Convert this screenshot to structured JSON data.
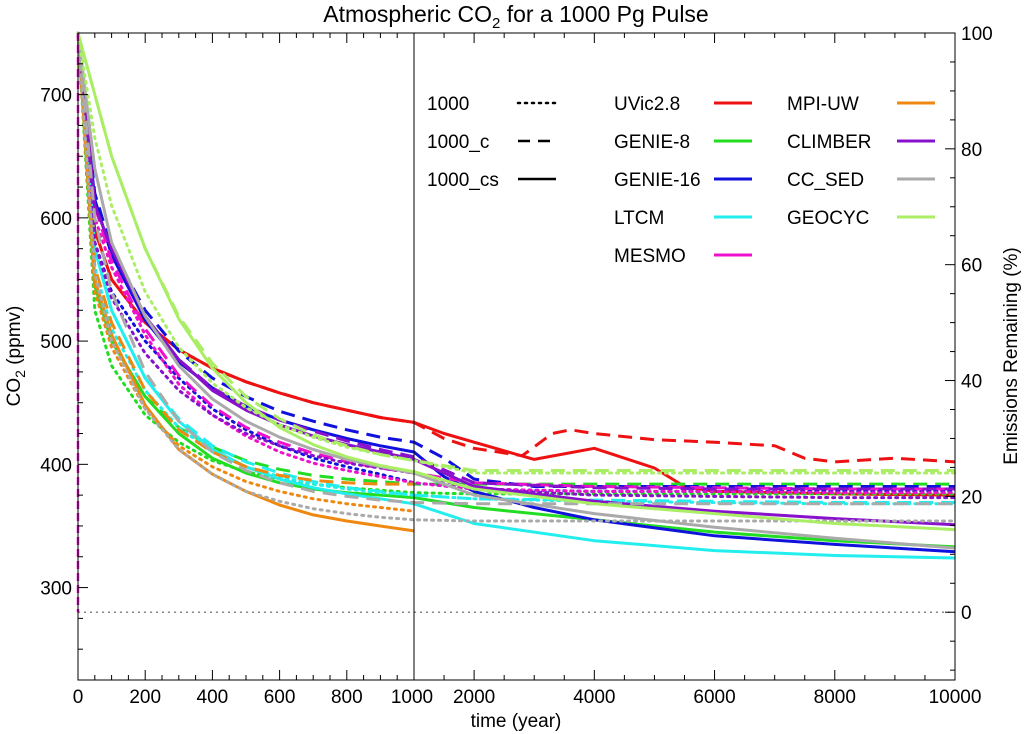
{
  "chart_data": {
    "type": "line",
    "title_main": "Atmospheric CO",
    "title_sub": "2",
    "title_tail": " for a 1000 Pg Pulse",
    "xlabel": "time (year)",
    "ylabel_main": "CO",
    "ylabel_sub": "2",
    "ylabel_tail": " (ppmv)",
    "y2label": "Emissions Remaining (%)",
    "ylim": [
      225,
      750
    ],
    "x_segments": [
      {
        "range": [
          0,
          1000
        ],
        "ticks": [
          0,
          200,
          400,
          600,
          800,
          1000
        ],
        "labels": [
          "0",
          "200",
          "400",
          "600",
          "800",
          "1000"
        ]
      },
      {
        "range": [
          1000,
          10000
        ],
        "ticks": [
          2000,
          4000,
          6000,
          8000,
          10000
        ],
        "labels": [
          "2000",
          "4000",
          "6000",
          "8000",
          "10000"
        ]
      }
    ],
    "yticks": [
      300,
      400,
      500,
      600,
      700
    ],
    "yticklabels": [
      "300",
      "400",
      "500",
      "600",
      "700"
    ],
    "y2ticks": [
      0,
      20,
      40,
      60,
      80,
      100
    ],
    "y2ticklabels": [
      "0",
      "20",
      "40",
      "60",
      "80",
      "100"
    ],
    "baseline_ppmv": 280,
    "divider_year": 1000,
    "line_styles": [
      {
        "name": "1000",
        "dash": "dotted"
      },
      {
        "name": "1000_c",
        "dash": "dashed"
      },
      {
        "name": "1000_cs",
        "dash": "solid"
      }
    ],
    "models": [
      {
        "name": "UVic2.8",
        "color": "#ee1111"
      },
      {
        "name": "GENIE-8",
        "color": "#22dd22"
      },
      {
        "name": "GENIE-16",
        "color": "#1111dd"
      },
      {
        "name": "LTCM",
        "color": "#22eeee"
      },
      {
        "name": "MESMO",
        "color": "#ee11cc"
      },
      {
        "name": "MPI-UW",
        "color": "#ee8811"
      },
      {
        "name": "CLIMBER",
        "color": "#8811cc"
      },
      {
        "name": "CC_SED",
        "color": "#aaaaaa"
      },
      {
        "name": "GEOCYC",
        "color": "#aaee66"
      }
    ],
    "series": [
      {
        "model": "UVic2.8",
        "style": "1000_cs",
        "x": [
          0,
          50,
          100,
          200,
          300,
          400,
          500,
          600,
          700,
          800,
          900,
          1000,
          1500,
          2000,
          3000,
          4000,
          5000,
          5500,
          6000,
          8000,
          10000
        ],
        "y": [
          750,
          590,
          550,
          515,
          493,
          478,
          467,
          458,
          450,
          444,
          438,
          434,
          425,
          418,
          404,
          413,
          397,
          382,
          378,
          376,
          375
        ]
      },
      {
        "model": "UVic2.8",
        "style": "1000_c",
        "x": [
          0,
          50,
          100,
          200,
          300,
          400,
          500,
          600,
          700,
          800,
          900,
          1000,
          1500,
          2000,
          2800,
          3300,
          3600,
          4000,
          5000,
          6000,
          7000,
          7500,
          8000,
          9000,
          10000
        ],
        "y": [
          750,
          590,
          550,
          515,
          493,
          478,
          467,
          458,
          450,
          444,
          438,
          434,
          421,
          413,
          407,
          425,
          428,
          425,
          420,
          418,
          415,
          405,
          402,
          405,
          402
        ]
      },
      {
        "model": "GENIE-8",
        "style": "1000",
        "x": [
          0,
          50,
          100,
          200,
          300,
          400,
          500,
          600,
          700,
          800,
          900,
          1000,
          2000,
          4000,
          6000,
          8000,
          10000
        ],
        "y": [
          750,
          525,
          480,
          440,
          418,
          403,
          394,
          388,
          384,
          381,
          379,
          377,
          376,
          376,
          376,
          376,
          376
        ]
      },
      {
        "model": "GENIE-8",
        "style": "1000_c",
        "x": [
          0,
          50,
          100,
          200,
          300,
          400,
          500,
          600,
          700,
          800,
          900,
          1000,
          2000,
          4000,
          6000,
          8000,
          10000
        ],
        "y": [
          750,
          545,
          500,
          455,
          430,
          414,
          403,
          396,
          391,
          388,
          386,
          384,
          384,
          384,
          384,
          384,
          384
        ]
      },
      {
        "model": "GENIE-8",
        "style": "1000_cs",
        "x": [
          0,
          50,
          100,
          200,
          300,
          400,
          500,
          600,
          700,
          800,
          900,
          1000,
          2000,
          4000,
          6000,
          8000,
          10000
        ],
        "y": [
          750,
          545,
          500,
          455,
          425,
          405,
          393,
          385,
          380,
          377,
          375,
          373,
          365,
          355,
          345,
          338,
          333
        ]
      },
      {
        "model": "GENIE-16",
        "style": "1000",
        "x": [
          0,
          50,
          100,
          200,
          300,
          400,
          500,
          600,
          700,
          800,
          900,
          1000,
          2000,
          4000,
          6000,
          8000,
          10000
        ],
        "y": [
          750,
          580,
          540,
          500,
          470,
          445,
          428,
          415,
          405,
          398,
          392,
          385,
          380,
          378,
          378,
          378,
          378
        ]
      },
      {
        "model": "GENIE-16",
        "style": "1000_c",
        "x": [
          0,
          50,
          100,
          200,
          300,
          400,
          500,
          600,
          700,
          800,
          900,
          1000,
          1500,
          2000,
          3000,
          4000,
          6000,
          8000,
          10000
        ],
        "y": [
          750,
          620,
          575,
          525,
          492,
          470,
          455,
          443,
          435,
          428,
          422,
          418,
          405,
          388,
          382,
          382,
          382,
          382,
          382
        ]
      },
      {
        "model": "GENIE-16",
        "style": "1000_cs",
        "x": [
          0,
          50,
          100,
          200,
          300,
          400,
          500,
          600,
          700,
          800,
          900,
          1000,
          1500,
          2000,
          3000,
          4000,
          6000,
          8000,
          10000
        ],
        "y": [
          750,
          615,
          570,
          517,
          483,
          462,
          447,
          436,
          428,
          421,
          415,
          410,
          390,
          378,
          365,
          355,
          342,
          335,
          329
        ]
      },
      {
        "model": "LTCM",
        "style": "1000",
        "x": [
          0,
          50,
          100,
          200,
          300,
          400,
          500,
          600,
          700,
          800,
          900,
          1000,
          2000,
          4000,
          6000,
          8000,
          10000
        ],
        "y": [
          750,
          560,
          510,
          460,
          430,
          410,
          398,
          390,
          384,
          380,
          377,
          375,
          372,
          370,
          369,
          368,
          368
        ]
      },
      {
        "model": "LTCM",
        "style": "1000_c",
        "x": [
          0,
          50,
          100,
          200,
          300,
          400,
          500,
          600,
          700,
          800,
          900,
          1000,
          2000,
          4000,
          6000,
          8000,
          10000
        ],
        "y": [
          750,
          575,
          525,
          470,
          437,
          415,
          402,
          393,
          386,
          381,
          378,
          375,
          372,
          371,
          370,
          369,
          369
        ]
      },
      {
        "model": "LTCM",
        "style": "1000_cs",
        "x": [
          0,
          50,
          100,
          200,
          300,
          400,
          500,
          600,
          700,
          800,
          900,
          1000,
          2000,
          4000,
          6000,
          8000,
          10000
        ],
        "y": [
          750,
          575,
          525,
          470,
          435,
          412,
          398,
          388,
          381,
          376,
          372,
          368,
          352,
          338,
          330,
          326,
          324
        ]
      },
      {
        "model": "MESMO",
        "style": "1000",
        "x": [
          0,
          50,
          100,
          200,
          300,
          400,
          500,
          600,
          700,
          800,
          900,
          1000,
          2000,
          4000,
          6000,
          8000,
          10000
        ],
        "y": [
          750,
          600,
          560,
          505,
          465,
          440,
          423,
          410,
          401,
          395,
          390,
          385,
          380,
          378,
          378,
          377,
          377
        ]
      },
      {
        "model": "MESMO",
        "style": "1000_c",
        "x": [
          0,
          50,
          100,
          200,
          300,
          400,
          500,
          600,
          700,
          800,
          900,
          1000,
          2000,
          4000,
          6000,
          8000,
          10000
        ],
        "y": [
          750,
          610,
          565,
          510,
          472,
          447,
          430,
          418,
          409,
          402,
          397,
          393,
          385,
          382,
          381,
          380,
          380
        ]
      },
      {
        "model": "MPI-UW",
        "style": "1000",
        "x": [
          0,
          50,
          100,
          200,
          300,
          400,
          500,
          600,
          700,
          800,
          900,
          1000
        ],
        "y": [
          750,
          540,
          495,
          445,
          415,
          398,
          386,
          378,
          372,
          368,
          365,
          362
        ]
      },
      {
        "model": "MPI-UW",
        "style": "1000_c",
        "x": [
          0,
          50,
          100,
          200,
          300,
          400,
          500,
          600,
          700,
          800,
          900,
          1000
        ],
        "y": [
          750,
          560,
          515,
          460,
          428,
          410,
          398,
          391,
          387,
          385,
          384,
          384
        ]
      },
      {
        "model": "MPI-UW",
        "style": "1000_cs",
        "x": [
          0,
          50,
          100,
          200,
          300,
          400,
          500,
          600,
          700,
          800,
          900,
          1000
        ],
        "y": [
          750,
          550,
          505,
          448,
          412,
          392,
          378,
          367,
          359,
          354,
          350,
          346
        ]
      },
      {
        "model": "CLIMBER",
        "style": "1000",
        "x": [
          0,
          50,
          100,
          200,
          300,
          400,
          500,
          600,
          700,
          800,
          900,
          1000,
          2000,
          4000,
          6000,
          8000,
          10000
        ],
        "y": [
          750,
          580,
          535,
          490,
          460,
          440,
          425,
          415,
          407,
          401,
          397,
          393,
          380,
          375,
          374,
          373,
          373
        ]
      },
      {
        "model": "CLIMBER",
        "style": "1000_c",
        "x": [
          0,
          50,
          100,
          200,
          300,
          400,
          500,
          600,
          700,
          800,
          900,
          1000,
          2000,
          4000,
          6000,
          8000,
          10000
        ],
        "y": [
          750,
          610,
          575,
          520,
          485,
          462,
          447,
          436,
          427,
          419,
          412,
          406,
          385,
          381,
          380,
          380,
          380
        ]
      },
      {
        "model": "CLIMBER",
        "style": "1000_cs",
        "x": [
          0,
          50,
          100,
          200,
          300,
          400,
          500,
          600,
          700,
          800,
          900,
          1000,
          2000,
          4000,
          6000,
          8000,
          10000
        ],
        "y": [
          750,
          610,
          575,
          520,
          485,
          460,
          444,
          432,
          423,
          416,
          410,
          404,
          382,
          370,
          362,
          356,
          351
        ]
      },
      {
        "model": "CC_SED",
        "style": "1000",
        "x": [
          0,
          50,
          100,
          200,
          300,
          400,
          500,
          600,
          700,
          800,
          900,
          1000,
          2000,
          4000,
          6000,
          8000,
          10000
        ],
        "y": [
          750,
          555,
          500,
          445,
          412,
          392,
          378,
          370,
          364,
          360,
          357,
          355,
          354,
          354,
          354,
          354,
          354
        ]
      },
      {
        "model": "CC_SED",
        "style": "1000_c",
        "x": [
          0,
          50,
          100,
          200,
          300,
          400,
          500,
          600,
          700,
          800,
          900,
          1000,
          2000,
          4000,
          6000,
          8000,
          10000
        ],
        "y": [
          750,
          600,
          540,
          475,
          435,
          410,
          395,
          385,
          378,
          374,
          371,
          369,
          368,
          368,
          368,
          368,
          368
        ]
      },
      {
        "model": "CC_SED",
        "style": "1000_cs",
        "x": [
          0,
          50,
          100,
          200,
          300,
          400,
          500,
          600,
          700,
          800,
          900,
          1000,
          2000,
          4000,
          6000,
          8000,
          10000
        ],
        "y": [
          750,
          640,
          580,
          520,
          480,
          453,
          435,
          422,
          412,
          404,
          398,
          393,
          375,
          360,
          349,
          340,
          332
        ]
      },
      {
        "model": "GEOCYC",
        "style": "1000",
        "x": [
          0,
          50,
          100,
          200,
          300,
          400,
          500,
          600,
          700,
          800,
          900,
          1000,
          2000,
          4000,
          6000,
          8000,
          10000
        ],
        "y": [
          750,
          665,
          610,
          540,
          495,
          466,
          446,
          432,
          422,
          414,
          408,
          403,
          393,
          393,
          393,
          393,
          393
        ]
      },
      {
        "model": "GEOCYC",
        "style": "1000_c",
        "x": [
          0,
          50,
          100,
          200,
          300,
          400,
          500,
          600,
          700,
          800,
          900,
          1000,
          2000,
          4000,
          6000,
          8000,
          10000
        ],
        "y": [
          750,
          700,
          650,
          575,
          520,
          482,
          455,
          437,
          424,
          415,
          408,
          403,
          395,
          395,
          395,
          395,
          395
        ]
      },
      {
        "model": "GEOCYC",
        "style": "1000_cs",
        "x": [
          0,
          50,
          100,
          200,
          300,
          400,
          500,
          600,
          700,
          800,
          900,
          1000,
          2000,
          4000,
          6000,
          8000,
          10000
        ],
        "y": [
          750,
          700,
          650,
          575,
          518,
          478,
          450,
          430,
          416,
          406,
          399,
          394,
          380,
          368,
          360,
          352,
          347
        ]
      }
    ]
  }
}
